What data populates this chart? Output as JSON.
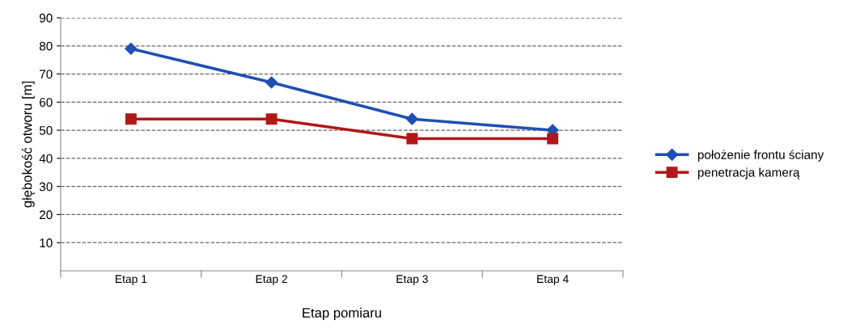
{
  "chart_data": {
    "type": "line",
    "xlabel": "Etap pomiaru",
    "ylabel": "głębokość otworu [m]",
    "categories": [
      "Etap 1",
      "Etap 2",
      "Etap 3",
      "Etap 4"
    ],
    "series": [
      {
        "name": "położenie frontu ściany",
        "color": "#1f4fb4",
        "values": [
          79,
          67,
          54,
          50
        ],
        "marker": "diamond"
      },
      {
        "name": "penetracja kamerą",
        "color": "#b01818",
        "values": [
          54,
          54,
          47,
          47
        ],
        "marker": "square"
      }
    ],
    "ylim": [
      0,
      90
    ],
    "yticks": [
      10,
      20,
      30,
      40,
      50,
      60,
      70,
      80,
      90
    ],
    "grid": "y",
    "legend": "right",
    "line_style": "solid"
  }
}
